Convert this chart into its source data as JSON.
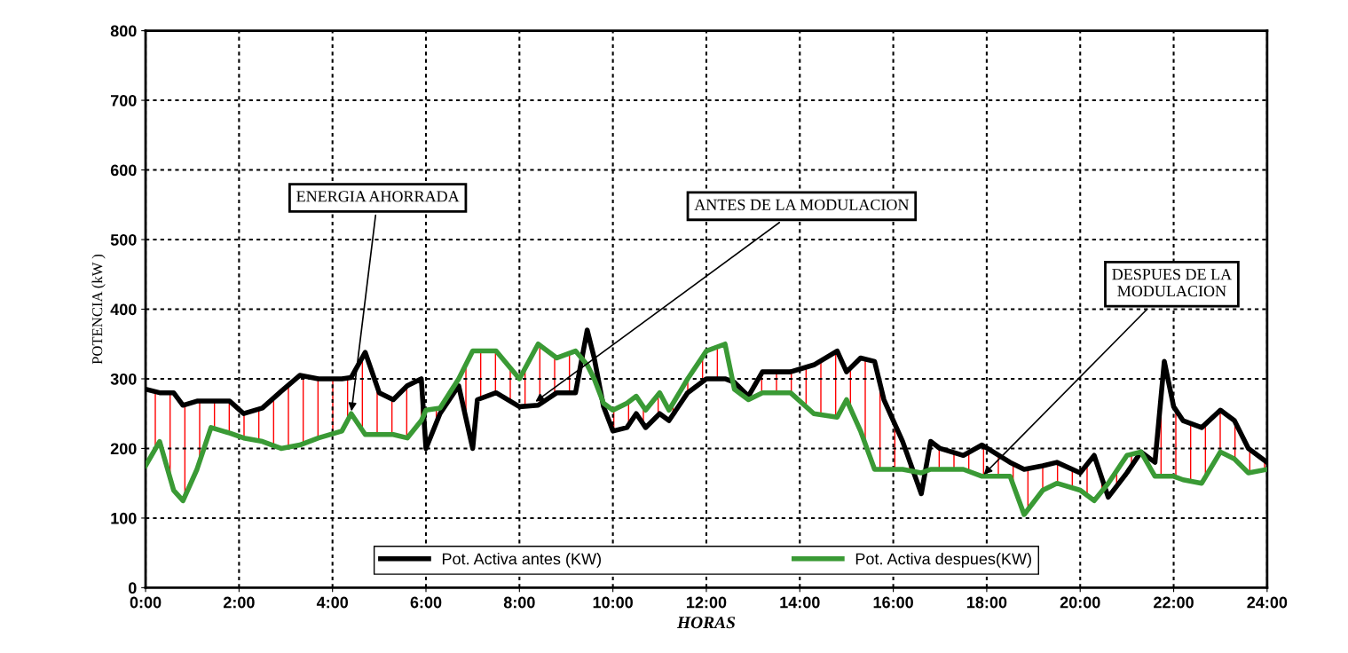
{
  "chart_data": {
    "type": "line",
    "xlabel": "HORAS",
    "ylabel": "POTENCIA (kW )",
    "x": [
      0,
      0.3,
      0.6,
      0.8,
      1.1,
      1.4,
      1.8,
      2.1,
      2.5,
      2.9,
      3.3,
      3.7,
      4.2,
      4.4,
      4.7,
      5.0,
      5.3,
      5.6,
      5.9,
      6.0,
      6.3,
      6.7,
      7.0,
      7.1,
      7.5,
      8.0,
      8.4,
      8.8,
      9.2,
      9.45,
      9.6,
      9.8,
      10.0,
      10.3,
      10.5,
      10.7,
      11.0,
      11.2,
      11.6,
      12.0,
      12.4,
      12.6,
      12.9,
      13.2,
      13.8,
      14.3,
      14.8,
      15.0,
      15.3,
      15.6,
      15.8,
      16.2,
      16.6,
      16.8,
      17.0,
      17.5,
      17.9,
      18.5,
      18.8,
      19.2,
      19.5,
      20.0,
      20.3,
      20.6,
      21.0,
      21.3,
      21.6,
      21.8,
      22.0,
      22.2,
      22.6,
      23.0,
      23.3,
      23.6,
      24.0
    ],
    "series": [
      {
        "name": "Pot. Activa antes (KW)",
        "color": "#000000",
        "values": [
          285,
          280,
          280,
          262,
          268,
          268,
          268,
          250,
          258,
          282,
          305,
          300,
          300,
          302,
          338,
          280,
          270,
          290,
          300,
          200,
          250,
          290,
          200,
          270,
          280,
          260,
          262,
          280,
          280,
          370,
          330,
          260,
          225,
          230,
          250,
          230,
          250,
          240,
          280,
          300,
          300,
          295,
          275,
          310,
          310,
          320,
          340,
          310,
          330,
          325,
          270,
          210,
          135,
          210,
          200,
          190,
          205,
          180,
          170,
          175,
          180,
          165,
          190,
          130,
          165,
          195,
          180,
          325,
          260,
          240,
          230,
          255,
          240,
          200,
          180
        ],
        "lower": [
          175,
          210,
          140,
          125,
          170,
          230,
          222,
          215,
          210,
          200,
          205,
          215,
          225,
          250,
          220,
          220,
          220,
          215,
          240,
          255,
          258,
          300,
          340,
          340,
          340,
          300,
          350,
          330,
          340,
          320,
          300,
          265,
          255,
          265,
          275,
          255,
          280,
          255,
          300,
          340,
          350,
          285,
          270,
          280,
          280,
          250,
          245,
          270,
          225,
          170,
          170,
          170,
          165,
          170,
          170,
          170,
          160,
          160,
          105,
          140,
          150,
          140,
          125,
          150,
          190,
          195,
          160,
          160,
          160,
          155,
          150,
          195,
          185,
          165,
          170
        ],
        "upper": [
          285,
          280,
          280,
          262,
          268,
          268,
          268,
          250,
          258,
          282,
          305,
          300,
          300,
          302,
          338,
          280,
          270,
          290,
          300,
          200,
          250,
          290,
          200,
          270,
          280,
          260,
          262,
          280,
          280,
          370,
          330,
          260,
          225,
          230,
          250,
          230,
          250,
          240,
          280,
          300,
          300,
          295,
          275,
          310,
          310,
          320,
          340,
          310,
          330,
          325,
          270,
          210,
          135,
          210,
          200,
          190,
          205,
          180,
          170,
          175,
          180,
          165,
          190,
          130,
          165,
          195,
          180,
          325,
          260,
          240,
          230,
          255,
          240,
          200,
          180
        ]
      },
      {
        "name": "Pot. Activa despues(KW)",
        "color": "#3a9a35",
        "values": [
          175,
          210,
          140,
          125,
          170,
          230,
          222,
          215,
          210,
          200,
          205,
          215,
          225,
          250,
          220,
          220,
          220,
          215,
          240,
          255,
          258,
          300,
          340,
          340,
          340,
          300,
          350,
          330,
          340,
          320,
          300,
          265,
          255,
          265,
          275,
          255,
          280,
          255,
          300,
          340,
          350,
          285,
          270,
          280,
          280,
          250,
          245,
          270,
          225,
          170,
          170,
          170,
          165,
          170,
          170,
          170,
          160,
          160,
          105,
          140,
          150,
          140,
          125,
          150,
          190,
          195,
          160,
          160,
          160,
          155,
          150,
          195,
          185,
          165,
          170
        ]
      }
    ],
    "xlim": [
      0,
      24
    ],
    "ylim": [
      0,
      800
    ],
    "xticks": [
      {
        "value": 0,
        "label": "0:00"
      },
      {
        "value": 2,
        "label": "2:00"
      },
      {
        "value": 4,
        "label": "4:00"
      },
      {
        "value": 6,
        "label": "6:00"
      },
      {
        "value": 8,
        "label": "8:00"
      },
      {
        "value": 10,
        "label": "10:00"
      },
      {
        "value": 12,
        "label": "12:00"
      },
      {
        "value": 14,
        "label": "14:00"
      },
      {
        "value": 16,
        "label": "16:00"
      },
      {
        "value": 18,
        "label": "18:00"
      },
      {
        "value": 20,
        "label": "20:00"
      },
      {
        "value": 22,
        "label": "22:00"
      },
      {
        "value": 24,
        "label": "24:00"
      }
    ],
    "yticks": [
      0,
      100,
      200,
      300,
      400,
      500,
      600,
      700,
      800
    ],
    "annotations": [
      {
        "text": "ENERGIA AHORRADA",
        "x": 4.4,
        "y": 250
      },
      {
        "text": "ANTES DE LA MODULACION",
        "x": 8.3,
        "y": 265
      },
      {
        "text": "DESPUES DE LA\nMODULACION",
        "x": 17.9,
        "y": 160
      }
    ],
    "grid": true,
    "legend": "bottom",
    "marker": "none",
    "line_style": "solid"
  }
}
